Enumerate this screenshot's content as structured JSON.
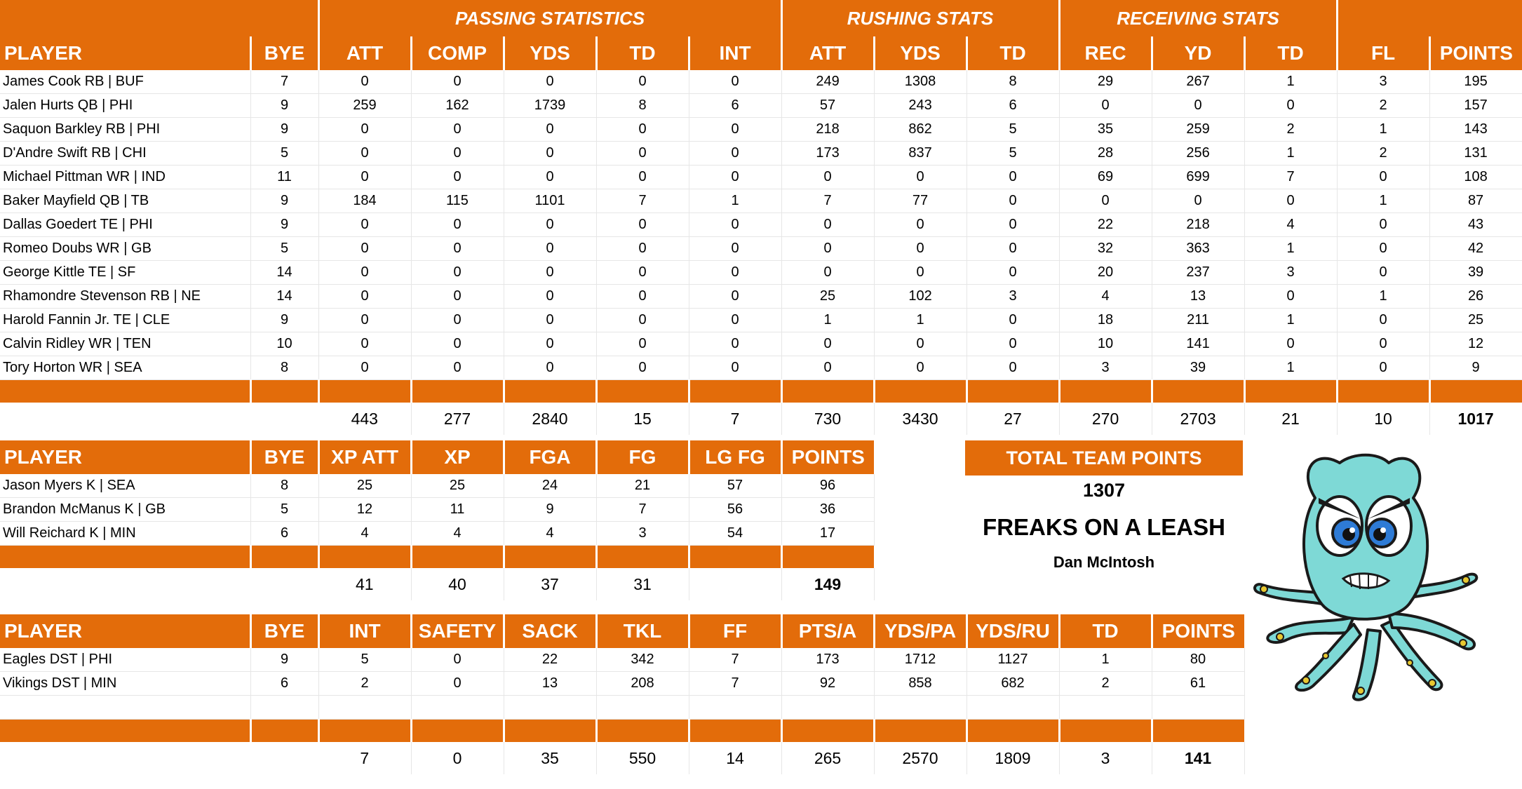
{
  "main_table": {
    "groups": [
      "PASSING STATISTICS",
      "RUSHING STATS",
      "RECEIVING STATS"
    ],
    "columns": [
      "PLAYER",
      "BYE",
      "ATT",
      "COMP",
      "YDS",
      "TD",
      "INT",
      "ATT",
      "YDS",
      "TD",
      "REC",
      "YD",
      "TD",
      "FL",
      "POINTS"
    ],
    "rows": [
      [
        "James Cook RB | BUF",
        "7",
        "0",
        "0",
        "0",
        "0",
        "0",
        "249",
        "1308",
        "8",
        "29",
        "267",
        "1",
        "3",
        "195"
      ],
      [
        "Jalen Hurts QB | PHI",
        "9",
        "259",
        "162",
        "1739",
        "8",
        "6",
        "57",
        "243",
        "6",
        "0",
        "0",
        "0",
        "2",
        "157"
      ],
      [
        "Saquon Barkley RB | PHI",
        "9",
        "0",
        "0",
        "0",
        "0",
        "0",
        "218",
        "862",
        "5",
        "35",
        "259",
        "2",
        "1",
        "143"
      ],
      [
        "D'Andre Swift RB | CHI",
        "5",
        "0",
        "0",
        "0",
        "0",
        "0",
        "173",
        "837",
        "5",
        "28",
        "256",
        "1",
        "2",
        "131"
      ],
      [
        "Michael Pittman WR | IND",
        "11",
        "0",
        "0",
        "0",
        "0",
        "0",
        "0",
        "0",
        "0",
        "69",
        "699",
        "7",
        "0",
        "108"
      ],
      [
        "Baker Mayfield QB | TB",
        "9",
        "184",
        "115",
        "1101",
        "7",
        "1",
        "7",
        "77",
        "0",
        "0",
        "0",
        "0",
        "1",
        "87"
      ],
      [
        "Dallas Goedert TE | PHI",
        "9",
        "0",
        "0",
        "0",
        "0",
        "0",
        "0",
        "0",
        "0",
        "22",
        "218",
        "4",
        "0",
        "43"
      ],
      [
        "Romeo Doubs WR | GB",
        "5",
        "0",
        "0",
        "0",
        "0",
        "0",
        "0",
        "0",
        "0",
        "32",
        "363",
        "1",
        "0",
        "42"
      ],
      [
        "George Kittle TE | SF",
        "14",
        "0",
        "0",
        "0",
        "0",
        "0",
        "0",
        "0",
        "0",
        "20",
        "237",
        "3",
        "0",
        "39"
      ],
      [
        "Rhamondre Stevenson RB | NE",
        "14",
        "0",
        "0",
        "0",
        "0",
        "0",
        "25",
        "102",
        "3",
        "4",
        "13",
        "0",
        "1",
        "26"
      ],
      [
        "Harold Fannin Jr. TE | CLE",
        "9",
        "0",
        "0",
        "0",
        "0",
        "0",
        "1",
        "1",
        "0",
        "18",
        "211",
        "1",
        "0",
        "25"
      ],
      [
        "Calvin Ridley WR | TEN",
        "10",
        "0",
        "0",
        "0",
        "0",
        "0",
        "0",
        "0",
        "0",
        "10",
        "141",
        "0",
        "0",
        "12"
      ],
      [
        "Tory Horton WR | SEA",
        "8",
        "0",
        "0",
        "0",
        "0",
        "0",
        "0",
        "0",
        "0",
        "3",
        "39",
        "1",
        "0",
        "9"
      ]
    ],
    "totals": [
      "",
      "",
      "443",
      "277",
      "2840",
      "15",
      "7",
      "730",
      "3430",
      "27",
      "270",
      "2703",
      "21",
      "10",
      "1017"
    ]
  },
  "kicker_table": {
    "columns": [
      "PLAYER",
      "BYE",
      "XP ATT",
      "XP",
      "FGA",
      "FG",
      "LG FG",
      "POINTS"
    ],
    "rows": [
      [
        "Jason Myers K | SEA",
        "8",
        "25",
        "25",
        "24",
        "21",
        "57",
        "96"
      ],
      [
        "Brandon McManus K | GB",
        "5",
        "12",
        "11",
        "9",
        "7",
        "56",
        "36"
      ],
      [
        "Will Reichard K | MIN",
        "6",
        "4",
        "4",
        "4",
        "3",
        "54",
        "17"
      ]
    ],
    "totals": [
      "",
      "",
      "41",
      "40",
      "37",
      "31",
      "",
      "149"
    ]
  },
  "defense_table": {
    "columns": [
      "PLAYER",
      "BYE",
      "INT",
      "SAFETY",
      "SACK",
      "TKL",
      "FF",
      "PTS/A",
      "YDS/PA",
      "YDS/RU",
      "TD",
      "POINTS"
    ],
    "rows": [
      [
        "Eagles DST | PHI",
        "9",
        "5",
        "0",
        "22",
        "342",
        "7",
        "173",
        "1712",
        "1127",
        "1",
        "80"
      ],
      [
        "Vikings DST | MIN",
        "6",
        "2",
        "0",
        "13",
        "208",
        "7",
        "92",
        "858",
        "682",
        "2",
        "61"
      ],
      [
        "",
        "",
        "",
        "",
        "",
        "",
        "",
        "",
        "",
        "",
        "",
        ""
      ]
    ],
    "totals": [
      "",
      "",
      "7",
      "0",
      "35",
      "550",
      "14",
      "265",
      "2570",
      "1809",
      "3",
      "141"
    ]
  },
  "summary": {
    "label": "TOTAL TEAM POINTS",
    "total": "1307",
    "team_name": "FREAKS ON A LEASH",
    "owner": "Dan McIntosh"
  },
  "mascot": {
    "icon": "angry-octopus-icon",
    "body_color": "#7ED9D6",
    "eye_color": "#2E7BD6",
    "sucker_color": "#E8C830"
  },
  "colors": {
    "accent": "#E36C0A",
    "header_text": "#FFFFFF"
  }
}
